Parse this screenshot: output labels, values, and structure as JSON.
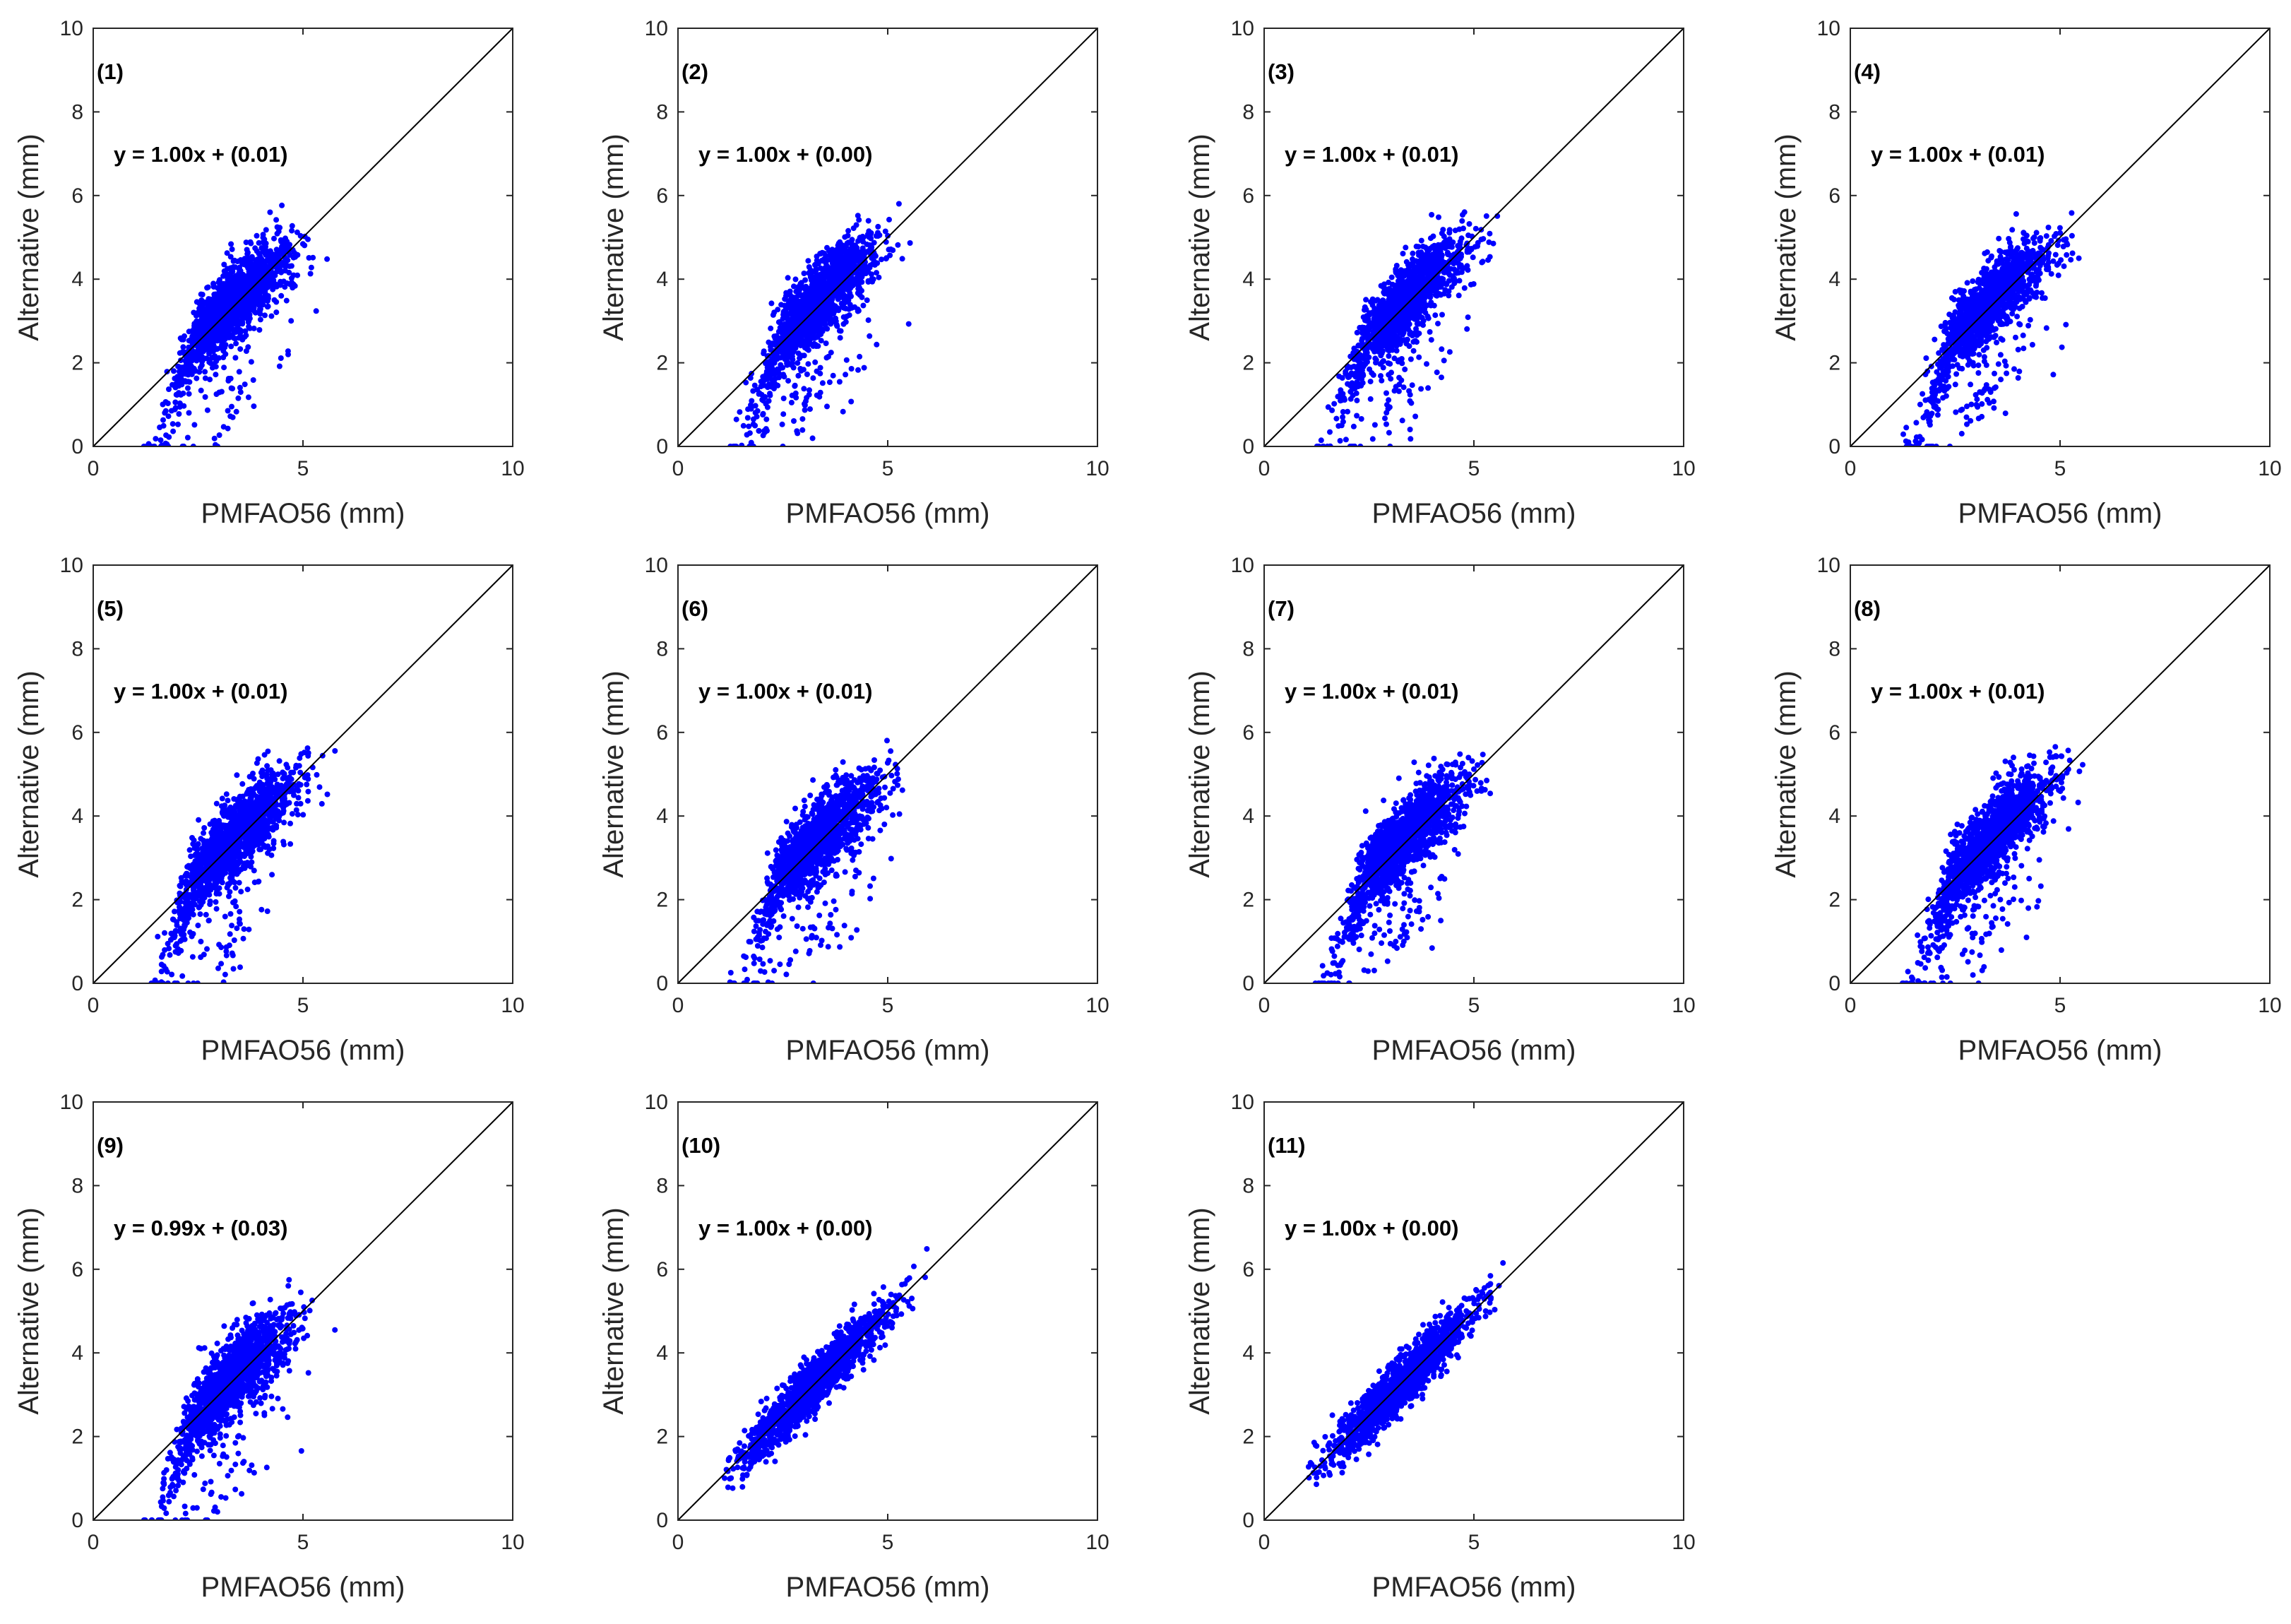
{
  "colors": {
    "points": "#0000ff",
    "axes": "#262626",
    "identity_line": "#000000",
    "background": "#ffffff"
  },
  "chart_data": [
    {
      "type": "scatter",
      "panel_label": "(1)",
      "equation": "y = 1.00x + (0.01)",
      "xlabel": "PMFAO56 (mm)",
      "ylabel": "Alternative (mm)",
      "xlim": [
        0,
        10
      ],
      "ylim": [
        0,
        10
      ],
      "xticks": [
        "0",
        "5",
        "10"
      ],
      "yticks": [
        "0",
        "2",
        "4",
        "6",
        "8",
        "10"
      ],
      "reference_line": "y = x",
      "fit": {
        "slope": 1.0,
        "intercept": 0.01
      },
      "style": "wide"
    },
    {
      "type": "scatter",
      "panel_label": "(2)",
      "equation": "y = 1.00x + (0.00)",
      "xlabel": "PMFAO56 (mm)",
      "ylabel": "Alternative (mm)",
      "xlim": [
        0,
        10
      ],
      "ylim": [
        0,
        10
      ],
      "xticks": [
        "0",
        "5",
        "10"
      ],
      "yticks": [
        "0",
        "2",
        "4",
        "6",
        "8",
        "10"
      ],
      "reference_line": "y = x",
      "fit": {
        "slope": 1.0,
        "intercept": 0.0
      },
      "style": "wide"
    },
    {
      "type": "scatter",
      "panel_label": "(3)",
      "equation": "y = 1.00x + (0.01)",
      "xlabel": "PMFAO56 (mm)",
      "ylabel": "Alternative (mm)",
      "xlim": [
        0,
        10
      ],
      "ylim": [
        0,
        10
      ],
      "xticks": [
        "0",
        "5",
        "10"
      ],
      "yticks": [
        "0",
        "2",
        "4",
        "6",
        "8",
        "10"
      ],
      "reference_line": "y = x",
      "fit": {
        "slope": 1.0,
        "intercept": 0.01
      },
      "style": "wide"
    },
    {
      "type": "scatter",
      "panel_label": "(4)",
      "equation": "y = 1.00x + (0.01)",
      "xlabel": "PMFAO56 (mm)",
      "ylabel": "Alternative (mm)",
      "xlim": [
        0,
        10
      ],
      "ylim": [
        0,
        10
      ],
      "xticks": [
        "0",
        "5",
        "10"
      ],
      "yticks": [
        "0",
        "2",
        "4",
        "6",
        "8",
        "10"
      ],
      "reference_line": "y = x",
      "fit": {
        "slope": 1.0,
        "intercept": 0.01
      },
      "style": "wide"
    },
    {
      "type": "scatter",
      "panel_label": "(5)",
      "equation": "y = 1.00x + (0.01)",
      "xlabel": "PMFAO56 (mm)",
      "ylabel": "Alternative (mm)",
      "xlim": [
        0,
        10
      ],
      "ylim": [
        0,
        10
      ],
      "xticks": [
        "0",
        "5",
        "10"
      ],
      "yticks": [
        "0",
        "2",
        "4",
        "6",
        "8",
        "10"
      ],
      "reference_line": "y = x",
      "fit": {
        "slope": 1.0,
        "intercept": 0.01
      },
      "style": "wide"
    },
    {
      "type": "scatter",
      "panel_label": "(6)",
      "equation": "y = 1.00x + (0.01)",
      "xlabel": "PMFAO56 (mm)",
      "ylabel": "Alternative (mm)",
      "xlim": [
        0,
        10
      ],
      "ylim": [
        0,
        10
      ],
      "xticks": [
        "0",
        "5",
        "10"
      ],
      "yticks": [
        "0",
        "2",
        "4",
        "6",
        "8",
        "10"
      ],
      "reference_line": "y = x",
      "fit": {
        "slope": 1.0,
        "intercept": 0.01
      },
      "style": "wide"
    },
    {
      "type": "scatter",
      "panel_label": "(7)",
      "equation": "y = 1.00x + (0.01)",
      "xlabel": "PMFAO56 (mm)",
      "ylabel": "Alternative (mm)",
      "xlim": [
        0,
        10
      ],
      "ylim": [
        0,
        10
      ],
      "xticks": [
        "0",
        "5",
        "10"
      ],
      "yticks": [
        "0",
        "2",
        "4",
        "6",
        "8",
        "10"
      ],
      "reference_line": "y = x",
      "fit": {
        "slope": 1.0,
        "intercept": 0.01
      },
      "style": "wide"
    },
    {
      "type": "scatter",
      "panel_label": "(8)",
      "equation": "y = 1.00x + (0.01)",
      "xlabel": "PMFAO56 (mm)",
      "ylabel": "Alternative (mm)",
      "xlim": [
        0,
        10
      ],
      "ylim": [
        0,
        10
      ],
      "xticks": [
        "0",
        "5",
        "10"
      ],
      "yticks": [
        "0",
        "2",
        "4",
        "6",
        "8",
        "10"
      ],
      "reference_line": "y = x",
      "fit": {
        "slope": 1.0,
        "intercept": 0.01
      },
      "style": "wide"
    },
    {
      "type": "scatter",
      "panel_label": "(9)",
      "equation": "y = 0.99x + (0.03)",
      "xlabel": "PMFAO56 (mm)",
      "ylabel": "Alternative (mm)",
      "xlim": [
        0,
        10
      ],
      "ylim": [
        0,
        10
      ],
      "xticks": [
        "0",
        "5",
        "10"
      ],
      "yticks": [
        "0",
        "2",
        "4",
        "6",
        "8",
        "10"
      ],
      "reference_line": "y = x",
      "fit": {
        "slope": 0.99,
        "intercept": 0.03
      },
      "style": "wide"
    },
    {
      "type": "scatter",
      "panel_label": "(10)",
      "equation": "y = 1.00x + (0.00)",
      "xlabel": "PMFAO56 (mm)",
      "ylabel": "Alternative (mm)",
      "xlim": [
        0,
        10
      ],
      "ylim": [
        0,
        10
      ],
      "xticks": [
        "0",
        "5",
        "10"
      ],
      "yticks": [
        "0",
        "2",
        "4",
        "6",
        "8",
        "10"
      ],
      "reference_line": "y = x",
      "fit": {
        "slope": 1.0,
        "intercept": 0.0
      },
      "style": "tight"
    },
    {
      "type": "scatter",
      "panel_label": "(11)",
      "equation": "y = 1.00x + (0.00)",
      "xlabel": "PMFAO56 (mm)",
      "ylabel": "Alternative (mm)",
      "xlim": [
        0,
        10
      ],
      "ylim": [
        0,
        10
      ],
      "xticks": [
        "0",
        "5",
        "10"
      ],
      "yticks": [
        "0",
        "2",
        "4",
        "6",
        "8",
        "10"
      ],
      "reference_line": "y = x",
      "fit": {
        "slope": 1.0,
        "intercept": 0.0
      },
      "style": "tight"
    }
  ]
}
